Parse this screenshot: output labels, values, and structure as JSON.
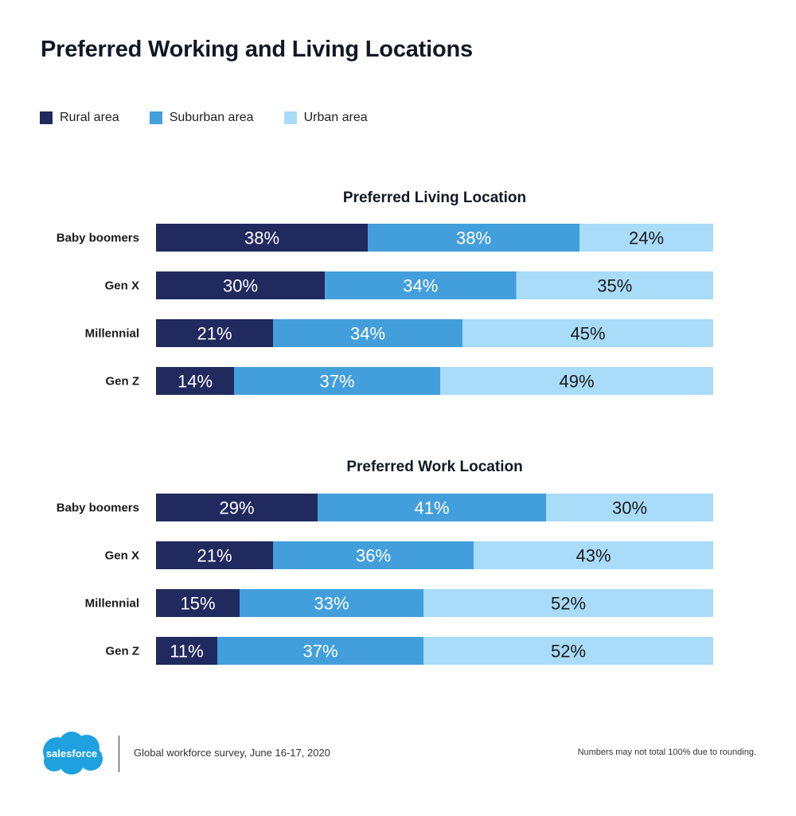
{
  "title": "Preferred Working and Living Locations",
  "legend": [
    {
      "label": "Rural area",
      "color": "#202a5f"
    },
    {
      "label": "Suburban area",
      "color": "#439fdb"
    },
    {
      "label": "Urban area",
      "color": "#a8dcf9"
    }
  ],
  "chart_data": [
    {
      "type": "bar",
      "stacked": true,
      "orientation": "horizontal",
      "title": "Preferred Living Location",
      "categories": [
        "Baby boomers",
        "Gen X",
        "Millennial",
        "Gen Z"
      ],
      "series": [
        {
          "name": "Rural area",
          "values": [
            38,
            30,
            21,
            14
          ],
          "labels": [
            "38%",
            "30%",
            "21%",
            "14%"
          ]
        },
        {
          "name": "Suburban area",
          "values": [
            38,
            34,
            34,
            37
          ],
          "labels": [
            "38%",
            "34%",
            "34%",
            "37%"
          ]
        },
        {
          "name": "Urban area",
          "values": [
            24,
            35,
            45,
            49
          ],
          "labels": [
            "24%",
            "35%",
            "45%",
            "49%"
          ]
        }
      ]
    },
    {
      "type": "bar",
      "stacked": true,
      "orientation": "horizontal",
      "title": "Preferred Work Location",
      "categories": [
        "Baby boomers",
        "Gen X",
        "Millennial",
        "Gen Z"
      ],
      "series": [
        {
          "name": "Rural area",
          "values": [
            29,
            21,
            15,
            11
          ],
          "labels": [
            "29%",
            "21%",
            "15%",
            "11%"
          ]
        },
        {
          "name": "Suburban area",
          "values": [
            41,
            36,
            33,
            37
          ],
          "labels": [
            "41%",
            "36%",
            "33%",
            "37%"
          ]
        },
        {
          "name": "Urban area",
          "values": [
            30,
            43,
            52,
            52
          ],
          "labels": [
            "30%",
            "43%",
            "52%",
            "52%"
          ]
        }
      ]
    }
  ],
  "footer": {
    "logo_text": "salesforce",
    "source": "Global workforce survey, June 16-17, 2020",
    "note": "Numbers may not total 100% due to rounding."
  }
}
